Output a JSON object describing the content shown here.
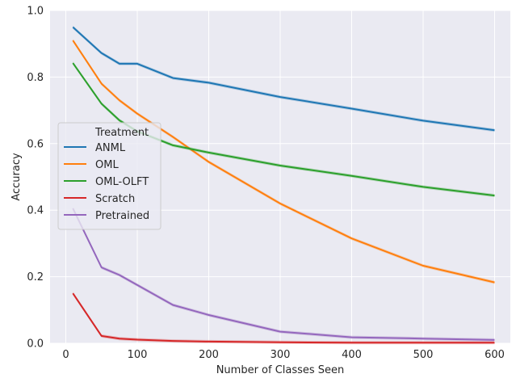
{
  "chart_data": {
    "type": "line",
    "title": "",
    "xlabel": "Number of Classes Seen",
    "ylabel": "Accuracy",
    "xlim": [
      -22,
      622
    ],
    "ylim": [
      0.0,
      1.0
    ],
    "xticks": [
      0,
      100,
      200,
      300,
      400,
      500,
      600
    ],
    "yticks": [
      0.0,
      0.2,
      0.4,
      0.6,
      0.8,
      1.0
    ],
    "grid": true,
    "background": "#eaeaf2",
    "legend": {
      "title": "Treatment",
      "placement": "center-left"
    },
    "x": [
      10,
      50,
      75,
      100,
      150,
      200,
      300,
      400,
      500,
      600
    ],
    "series": [
      {
        "name": "ANML",
        "color": "#1f77b4",
        "values": [
          0.95,
          0.872,
          0.84,
          0.84,
          0.797,
          0.783,
          0.74,
          0.705,
          0.669,
          0.64
        ]
      },
      {
        "name": "OML",
        "color": "#ff7f0e",
        "values": [
          0.91,
          0.78,
          0.73,
          0.69,
          0.62,
          0.545,
          0.42,
          0.315,
          0.233,
          0.183
        ]
      },
      {
        "name": "OML-OLFT",
        "color": "#2ca02c",
        "values": [
          0.842,
          0.72,
          0.67,
          0.637,
          0.595,
          0.573,
          0.534,
          0.503,
          0.47,
          0.444
        ]
      },
      {
        "name": "Scratch",
        "color": "#d62728",
        "values": [
          0.15,
          0.022,
          0.014,
          0.011,
          0.007,
          0.005,
          0.003,
          0.002,
          0.002,
          0.002
        ]
      },
      {
        "name": "Pretrained",
        "color": "#9467bd",
        "values": [
          0.405,
          0.228,
          0.205,
          0.175,
          0.115,
          0.085,
          0.035,
          0.018,
          0.014,
          0.01
        ]
      }
    ]
  }
}
